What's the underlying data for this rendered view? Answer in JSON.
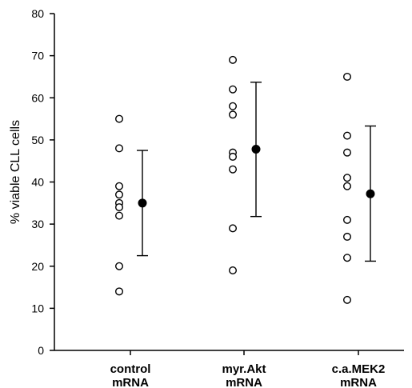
{
  "chart_data": {
    "type": "scatter",
    "title": "",
    "ylabel": "% viable CLL cells",
    "xlabel": "",
    "ylim": [
      0,
      80
    ],
    "yticks": [
      0,
      10,
      20,
      30,
      40,
      50,
      60,
      70,
      80
    ],
    "grid": false,
    "legend": "none",
    "marker_fill_individual": "#ffffff",
    "marker_fill_mean": "#000000",
    "stroke_color": "#000000",
    "categories": [
      {
        "line1": "control",
        "line2": "mRNA"
      },
      {
        "line1": "myr.Akt",
        "line2": "mRNA"
      },
      {
        "line1": "c.a.MEK2",
        "line2": "mRNA"
      }
    ],
    "groups": [
      {
        "values": [
          55,
          48,
          39,
          37,
          35,
          34,
          32,
          20,
          14
        ],
        "mean": 35,
        "error_upper": 47.5,
        "error_lower": 22.5
      },
      {
        "values": [
          69,
          62,
          58,
          56,
          47,
          46,
          43,
          29,
          19
        ],
        "mean": 47.8,
        "error_upper": 63.7,
        "error_lower": 31.8
      },
      {
        "values": [
          65,
          51,
          47,
          41,
          39,
          31,
          27,
          22,
          12
        ],
        "mean": 37.2,
        "error_upper": 53.3,
        "error_lower": 21.2
      }
    ]
  }
}
